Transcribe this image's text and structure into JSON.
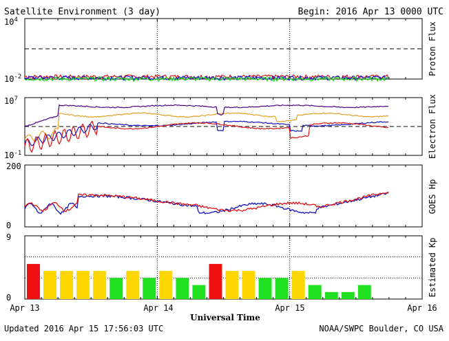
{
  "header": {
    "title": "Satellite Environment (3 day)",
    "begin": "Begin:  2016 Apr 13 0000 UTC"
  },
  "footer": {
    "updated": "Updated 2016 Apr 15 17:56:03 UTC",
    "source": "NOAA/SWPC Boulder, CO USA",
    "xlabel": "Universal Time"
  },
  "chart_data": [
    {
      "type": "line",
      "ylabel": "Proton Flux",
      "yscale": "log",
      "ylim": [
        0.01,
        10000
      ],
      "y_ticks": [
        {
          "base": "10",
          "exp": "4"
        },
        {
          "base": "10",
          "exp": "-2"
        }
      ],
      "threshold": 10,
      "series_colors": [
        "#e01010",
        "#1010e0",
        "#20e020"
      ],
      "levels": [
        0.018,
        0.014,
        0.011
      ],
      "x_range_days": [
        0,
        3
      ]
    },
    {
      "type": "line",
      "ylabel": "Electron Flux",
      "yscale": "log",
      "ylim": [
        0.1,
        10000000
      ],
      "y_ticks": [
        {
          "base": "10",
          "exp": "7"
        },
        {
          "base": "10",
          "exp": "-1"
        }
      ],
      "threshold": 1000,
      "series_colors": [
        "#e0a020",
        "#4b0082",
        "#1010c0",
        "#e01010"
      ],
      "x_range_days": [
        0,
        3
      ]
    },
    {
      "type": "line",
      "ylabel": "GOES Hp",
      "ylim": [
        0,
        200
      ],
      "y_ticks": [
        "200",
        "0"
      ],
      "series_colors": [
        "#e01010",
        "#1010c0"
      ],
      "x_range_days": [
        0,
        3
      ]
    },
    {
      "type": "bar",
      "ylabel": "Estimated Kp",
      "ylim": [
        0,
        9
      ],
      "y_ticks": [
        "9",
        "0"
      ],
      "gridlines": [
        3,
        6
      ],
      "bar_width_hours": 3,
      "values": [
        5,
        4,
        4,
        4,
        4,
        3,
        4,
        3,
        4,
        3,
        2,
        5,
        4,
        4,
        3,
        3,
        4,
        2,
        1,
        1,
        2
      ],
      "colors": {
        "green": "#20e020",
        "yellow": "#ffd700",
        "red": "#ee1111"
      },
      "color_rule": "green < 4, yellow = 4, red >= 5"
    }
  ],
  "x_axis": {
    "ticks": [
      "Apr 13",
      "Apr 14",
      "Apr 15",
      "Apr 16"
    ]
  }
}
